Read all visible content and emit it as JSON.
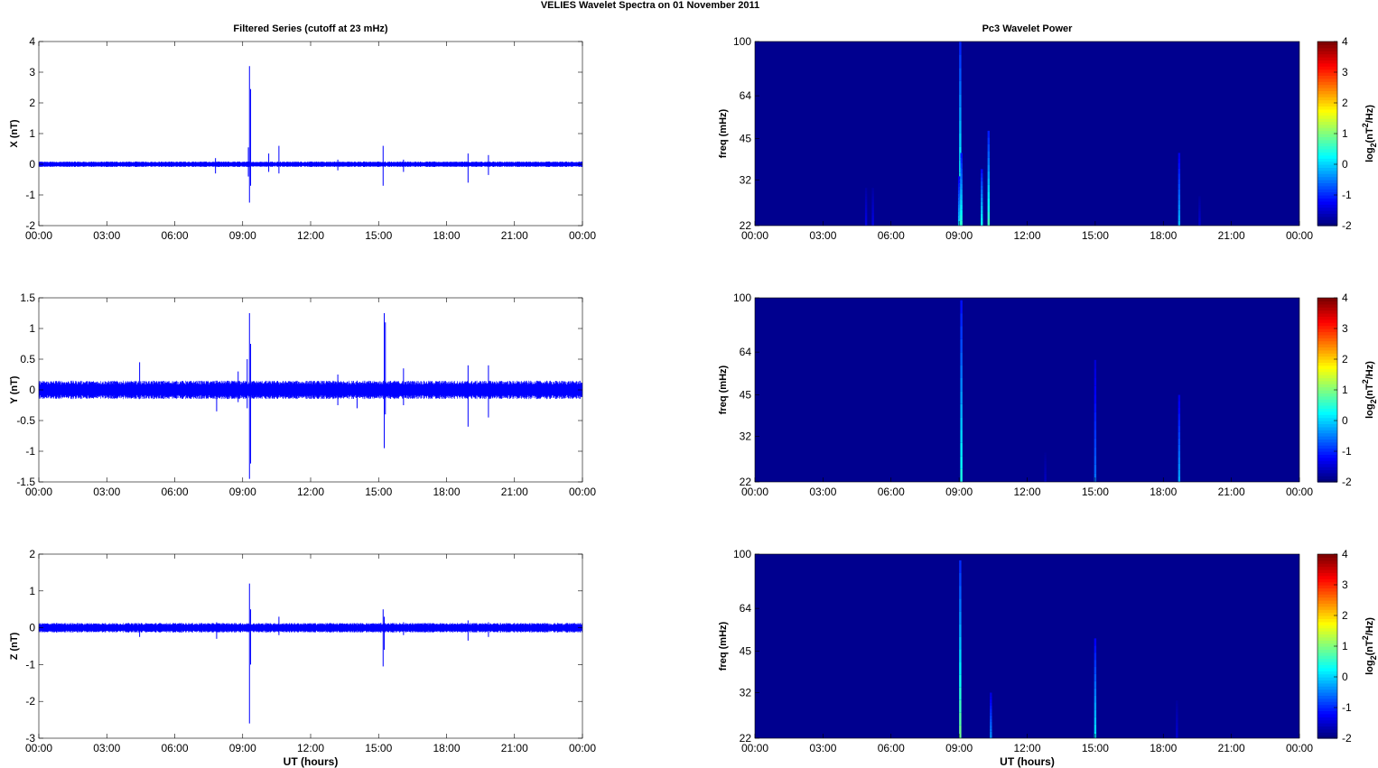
{
  "figure": {
    "suptitle": "VELIES Wavelet Spectra on 01 November  2011",
    "left_title": "Filtered Series (cutoff at 23 mHz)",
    "right_title": "Pc3 Wavelet Power",
    "xlabel": "UT (hours)"
  },
  "colors": {
    "trace": "#0000ff",
    "background": "#00008f",
    "colormap": "jet"
  },
  "chart_data": [
    {
      "type": "line",
      "panel": "X",
      "title": "Filtered Series (cutoff at 23 mHz)",
      "ylabel": "X (nT)",
      "xlabel": "",
      "x_ticks": [
        "00:00",
        "03:00",
        "06:00",
        "09:00",
        "12:00",
        "15:00",
        "18:00",
        "21:00",
        "00:00"
      ],
      "xlim_hours": [
        0,
        24
      ],
      "ylim": [
        -2,
        4
      ],
      "y_ticks": [
        "-2",
        "-1",
        "0",
        "1",
        "2",
        "3",
        "4"
      ],
      "noise_amplitude": 0.09,
      "spikes": [
        {
          "t": 9.3,
          "max": 3.2,
          "min": -1.25
        },
        {
          "t": 9.35,
          "max": 2.45,
          "min": -0.7
        },
        {
          "t": 9.25,
          "max": 0.55,
          "min": -0.4
        },
        {
          "t": 10.6,
          "max": 0.6,
          "min": -0.3
        },
        {
          "t": 10.15,
          "max": 0.35,
          "min": -0.25
        },
        {
          "t": 7.8,
          "max": 0.2,
          "min": -0.3
        },
        {
          "t": 15.2,
          "max": 0.6,
          "min": -0.7
        },
        {
          "t": 16.1,
          "max": 0.15,
          "min": -0.25
        },
        {
          "t": 13.2,
          "max": 0.15,
          "min": -0.2
        },
        {
          "t": 18.95,
          "max": 0.35,
          "min": -0.6
        },
        {
          "t": 19.85,
          "max": 0.3,
          "min": -0.35
        }
      ]
    },
    {
      "type": "line",
      "panel": "Y",
      "ylabel": "Y (nT)",
      "xlabel": "",
      "x_ticks": [
        "00:00",
        "03:00",
        "06:00",
        "09:00",
        "12:00",
        "15:00",
        "18:00",
        "21:00",
        "00:00"
      ],
      "xlim_hours": [
        0,
        24
      ],
      "ylim": [
        -1.5,
        1.5
      ],
      "y_ticks": [
        "-1.5",
        "-1",
        "-0.5",
        "0",
        "0.5",
        "1",
        "1.5"
      ],
      "noise_amplitude": 0.15,
      "spikes": [
        {
          "t": 4.45,
          "max": 0.45,
          "min": -0.15
        },
        {
          "t": 7.85,
          "max": 0.15,
          "min": -0.35
        },
        {
          "t": 8.8,
          "max": 0.3,
          "min": -0.2
        },
        {
          "t": 9.3,
          "max": 1.25,
          "min": -1.45
        },
        {
          "t": 9.35,
          "max": 0.75,
          "min": -1.2
        },
        {
          "t": 9.2,
          "max": 0.5,
          "min": -0.3
        },
        {
          "t": 13.2,
          "max": 0.25,
          "min": -0.25
        },
        {
          "t": 14.05,
          "max": 0.15,
          "min": -0.3
        },
        {
          "t": 15.25,
          "max": 1.25,
          "min": -0.95
        },
        {
          "t": 15.3,
          "max": 1.1,
          "min": -0.4
        },
        {
          "t": 16.1,
          "max": 0.35,
          "min": -0.25
        },
        {
          "t": 18.95,
          "max": 0.4,
          "min": -0.6
        },
        {
          "t": 19.85,
          "max": 0.4,
          "min": -0.45
        }
      ]
    },
    {
      "type": "line",
      "panel": "Z",
      "ylabel": "Z (nT)",
      "xlabel": "UT (hours)",
      "x_ticks": [
        "00:00",
        "03:00",
        "06:00",
        "09:00",
        "12:00",
        "15:00",
        "18:00",
        "21:00",
        "00:00"
      ],
      "xlim_hours": [
        0,
        24
      ],
      "ylim": [
        -3,
        2
      ],
      "y_ticks": [
        "-3",
        "-2",
        "-1",
        "0",
        "1",
        "2"
      ],
      "noise_amplitude": 0.13,
      "spikes": [
        {
          "t": 4.45,
          "max": 0.1,
          "min": -0.25
        },
        {
          "t": 7.85,
          "max": 0.15,
          "min": -0.3
        },
        {
          "t": 9.3,
          "max": 1.2,
          "min": -2.6
        },
        {
          "t": 9.35,
          "max": 0.5,
          "min": -1.0
        },
        {
          "t": 10.6,
          "max": 0.3,
          "min": -0.2
        },
        {
          "t": 15.2,
          "max": 0.5,
          "min": -1.05
        },
        {
          "t": 15.25,
          "max": 0.3,
          "min": -0.6
        },
        {
          "t": 16.1,
          "max": 0.15,
          "min": -0.2
        },
        {
          "t": 18.95,
          "max": 0.2,
          "min": -0.35
        },
        {
          "t": 19.85,
          "max": 0.15,
          "min": -0.25
        }
      ]
    },
    {
      "type": "heatmap",
      "panel": "X",
      "title": "Pc3 Wavelet Power",
      "ylabel": "freq (mHz)",
      "xlabel": "",
      "x_ticks": [
        "00:00",
        "03:00",
        "06:00",
        "09:00",
        "12:00",
        "15:00",
        "18:00",
        "21:00",
        "00:00"
      ],
      "xlim_hours": [
        0,
        24
      ],
      "ylim_mHz": [
        22,
        100
      ],
      "y_scale": "log",
      "y_ticks": [
        100,
        64,
        45,
        32,
        22
      ],
      "colorbar_label": "log2(nT^2/Hz)",
      "colorbar_ticks": [
        "4",
        "3",
        "2",
        "1",
        "0",
        "-1",
        "-2"
      ],
      "clim": [
        -2,
        4
      ],
      "bursts": [
        {
          "t": 9.05,
          "f_low": 22,
          "f_high": 100,
          "level": 0.8
        },
        {
          "t": 9.1,
          "f_low": 22,
          "f_high": 40,
          "level": 0.5
        },
        {
          "t": 9.0,
          "f_low": 22,
          "f_high": 33,
          "level": 0.0
        },
        {
          "t": 10.0,
          "f_low": 22,
          "f_high": 35,
          "level": 0.3
        },
        {
          "t": 10.3,
          "f_low": 22,
          "f_high": 48,
          "level": 0.6
        },
        {
          "t": 4.9,
          "f_low": 22,
          "f_high": 30,
          "level": -1.4
        },
        {
          "t": 5.2,
          "f_low": 22,
          "f_high": 30,
          "level": -1.4
        },
        {
          "t": 18.7,
          "f_low": 22,
          "f_high": 40,
          "level": -0.2
        },
        {
          "t": 19.6,
          "f_low": 22,
          "f_high": 28,
          "level": -1.5
        }
      ]
    },
    {
      "type": "heatmap",
      "panel": "Y",
      "ylabel": "freq (mHz)",
      "xlabel": "",
      "x_ticks": [
        "00:00",
        "03:00",
        "06:00",
        "09:00",
        "12:00",
        "15:00",
        "18:00",
        "21:00",
        "00:00"
      ],
      "xlim_hours": [
        0,
        24
      ],
      "ylim_mHz": [
        22,
        100
      ],
      "y_scale": "log",
      "y_ticks": [
        100,
        64,
        45,
        32,
        22
      ],
      "colorbar_label": "log2(nT^2/Hz)",
      "colorbar_ticks": [
        "4",
        "3",
        "2",
        "1",
        "0",
        "-1",
        "-2"
      ],
      "clim": [
        -2,
        4
      ],
      "bursts": [
        {
          "t": 9.1,
          "f_low": 22,
          "f_high": 98,
          "level": 0.4
        },
        {
          "t": 15.0,
          "f_low": 22,
          "f_high": 60,
          "level": -0.6
        },
        {
          "t": 18.7,
          "f_low": 22,
          "f_high": 45,
          "level": -0.3
        },
        {
          "t": 12.8,
          "f_low": 22,
          "f_high": 28,
          "level": -1.6
        }
      ]
    },
    {
      "type": "heatmap",
      "panel": "Z",
      "ylabel": "freq (mHz)",
      "xlabel": "UT (hours)",
      "x_ticks": [
        "00:00",
        "03:00",
        "06:00",
        "09:00",
        "12:00",
        "15:00",
        "18:00",
        "21:00",
        "00:00"
      ],
      "xlim_hours": [
        0,
        24
      ],
      "ylim_mHz": [
        22,
        100
      ],
      "y_scale": "log",
      "y_ticks": [
        100,
        64,
        45,
        32,
        22
      ],
      "colorbar_label": "log2(nT^2/Hz)",
      "colorbar_ticks": [
        "4",
        "3",
        "2",
        "1",
        "0",
        "-1",
        "-2"
      ],
      "clim": [
        -2,
        4
      ],
      "bursts": [
        {
          "t": 9.05,
          "f_low": 22,
          "f_high": 95,
          "level": 0.9
        },
        {
          "t": 10.4,
          "f_low": 22,
          "f_high": 32,
          "level": -0.4
        },
        {
          "t": 15.0,
          "f_low": 22,
          "f_high": 50,
          "level": 0.1
        },
        {
          "t": 18.6,
          "f_low": 22,
          "f_high": 30,
          "level": -1.5
        }
      ]
    }
  ]
}
